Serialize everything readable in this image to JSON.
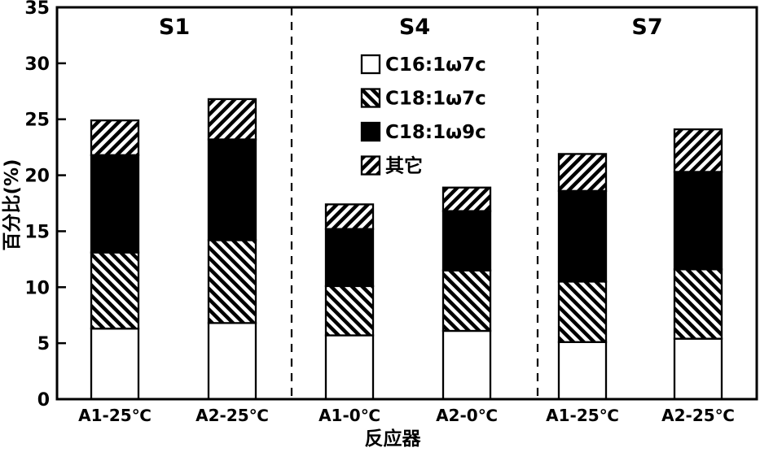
{
  "chart_data": {
    "type": "bar",
    "subtype": "stacked",
    "title": "",
    "ylabel": "百分比(%)",
    "xlabel": "反应器",
    "ylim": [
      0,
      35
    ],
    "yticks": [
      0,
      5,
      10,
      15,
      20,
      25,
      30,
      35
    ],
    "grid": false,
    "legend_position": "inside plot, upper area of S4 panel, vertical list",
    "panel_dividers": "dashed vertical lines between S1/S4 and S4/S7 panels",
    "sections": [
      {
        "label": "S1",
        "categories": [
          "A1-25℃",
          "A2-25℃"
        ]
      },
      {
        "label": "S4",
        "categories": [
          "A1-0℃",
          "A2-0℃"
        ]
      },
      {
        "label": "S7",
        "categories": [
          "A1-25℃",
          "A2-25℃"
        ]
      }
    ],
    "series": [
      {
        "name": "C16:1ω7c",
        "fill": "white",
        "values": [
          6.3,
          6.8,
          5.7,
          6.1,
          5.1,
          5.4
        ]
      },
      {
        "name": "C18:1ω7c",
        "fill": "hatch-forward",
        "values": [
          6.8,
          7.4,
          4.4,
          5.4,
          5.4,
          6.2
        ]
      },
      {
        "name": "C18:1ω9c",
        "fill": "solid-black",
        "values": [
          8.7,
          9.0,
          5.1,
          5.3,
          8.1,
          8.7
        ]
      },
      {
        "name": "其它",
        "fill": "hatch-back",
        "values": [
          3.1,
          3.6,
          2.2,
          2.1,
          3.3,
          3.8
        ]
      }
    ],
    "bar_totals": [
      24.9,
      26.8,
      17.4,
      18.9,
      21.9,
      24.1
    ],
    "colors": {
      "foreground": "#000000",
      "background": "#ffffff"
    }
  }
}
